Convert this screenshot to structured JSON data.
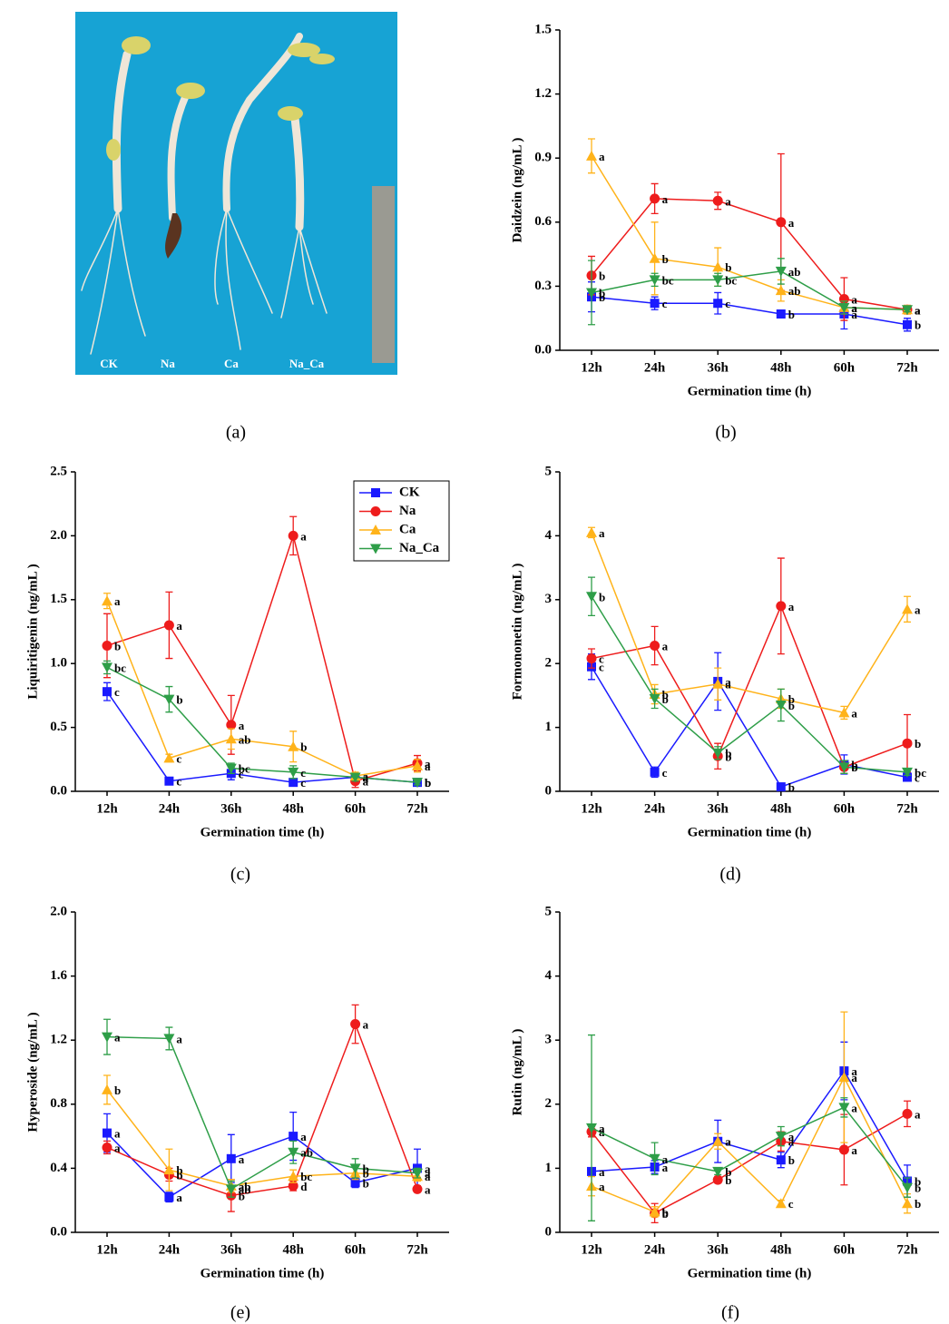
{
  "photo": {
    "labels": [
      "CK",
      "Na",
      "Ca",
      "Na_Ca"
    ]
  },
  "panel_labels": [
    "(a)",
    "(b)",
    "(c)",
    "(d)",
    "(e)",
    "(f)"
  ],
  "chart_data": [
    {
      "type": "line",
      "x_label": "Germination time (h)",
      "y_label": "Daidzein (ng/mL )",
      "categories": [
        "12h",
        "24h",
        "36h",
        "48h",
        "60h",
        "72h"
      ],
      "ylim": [
        0,
        1.5
      ],
      "yticks": [
        {
          "value": 0,
          "label": "0.0"
        },
        0.3,
        0.6,
        0.9,
        1.2,
        1.5
      ],
      "legend": false,
      "series": [
        {
          "color": "#1a1aff",
          "marker": "square",
          "values": [
            0.25,
            0.22,
            0.22,
            0.17,
            0.17,
            0.12
          ],
          "errors": [
            0.07,
            0.03,
            0.05,
            0.01,
            0.07,
            0.03
          ],
          "letters": [
            "b",
            "c",
            "c",
            "b",
            "a",
            "b"
          ]
        },
        {
          "color": "#ee1c1c",
          "marker": "circle",
          "values": [
            0.35,
            0.71,
            0.7,
            0.6,
            0.24,
            0.19
          ],
          "errors": [
            0.09,
            0.07,
            0.04,
            0.32,
            0.1,
            0.02
          ],
          "letters": [
            "b",
            "a",
            "a",
            "a",
            "a",
            "a"
          ]
        },
        {
          "color": "#ffb31a",
          "marker": "triangle-up",
          "values": [
            0.91,
            0.43,
            0.39,
            0.28,
            0.2,
            0.19
          ],
          "errors": [
            0.08,
            0.17,
            0.09,
            0.05,
            0.03,
            0.02
          ],
          "letters": [
            "a",
            "b",
            "b",
            "ab",
            "a",
            "a"
          ]
        },
        {
          "color": "#2e9e48",
          "marker": "triangle-down",
          "values": [
            0.27,
            0.33,
            0.33,
            0.37,
            0.2,
            0.19
          ],
          "errors": [
            0.15,
            0.03,
            0.03,
            0.06,
            0.03,
            0.01
          ],
          "letters": [
            "b",
            "bc",
            "bc",
            "ab",
            "a",
            "a"
          ]
        }
      ]
    },
    {
      "type": "line",
      "x_label": "Germination time (h)",
      "y_label": "Liquiritigenin (ng/mL )",
      "categories": [
        "12h",
        "24h",
        "36h",
        "48h",
        "60h",
        "72h"
      ],
      "ylim": [
        0,
        2.5
      ],
      "yticks": [
        {
          "value": 0,
          "label": "0.0"
        },
        0.5,
        {
          "value": 1,
          "label": "1.0"
        },
        1.5,
        {
          "value": 2,
          "label": "2.0"
        },
        2.5
      ],
      "legend": true,
      "series": [
        {
          "name": "CK",
          "color": "#1a1aff",
          "marker": "square",
          "values": [
            0.78,
            0.08,
            0.14,
            0.07,
            0.11,
            0.07
          ],
          "errors": [
            0.07,
            0.02,
            0.05,
            0.02,
            0.03,
            0.02
          ],
          "letters": [
            "c",
            "c",
            "c",
            "c",
            "a",
            "b"
          ]
        },
        {
          "name": "Na",
          "color": "#ee1c1c",
          "marker": "circle",
          "values": [
            1.14,
            1.3,
            0.52,
            2.0,
            0.08,
            0.22
          ],
          "errors": [
            0.25,
            0.26,
            0.23,
            0.15,
            0.05,
            0.06
          ],
          "letters": [
            "b",
            "a",
            "a",
            "a",
            "a",
            "a"
          ]
        },
        {
          "name": "Ca",
          "color": "#ffb31a",
          "marker": "triangle-up",
          "values": [
            1.49,
            0.26,
            0.41,
            0.35,
            0.12,
            0.2
          ],
          "errors": [
            0.06,
            0.03,
            0.08,
            0.12,
            0.03,
            0.05
          ],
          "letters": [
            "a",
            "c",
            "ab",
            "b",
            "a",
            "a"
          ]
        },
        {
          "name": "Na_Ca",
          "color": "#2e9e48",
          "marker": "triangle-down",
          "values": [
            0.97,
            0.72,
            0.18,
            0.15,
            0.11,
            0.07
          ],
          "errors": [
            0.05,
            0.1,
            0.04,
            0.05,
            0.03,
            0.02
          ],
          "letters": [
            "bc",
            "b",
            "bc",
            "c",
            "a",
            "b"
          ]
        }
      ]
    },
    {
      "type": "line",
      "x_label": "Germination time (h)",
      "y_label": "Formononetin (ng/mL )",
      "categories": [
        "12h",
        "24h",
        "36h",
        "48h",
        "60h",
        "72h"
      ],
      "ylim": [
        0,
        5
      ],
      "yticks": [
        0,
        1,
        2,
        3,
        4,
        5
      ],
      "legend": false,
      "series": [
        {
          "color": "#1a1aff",
          "marker": "square",
          "values": [
            1.95,
            0.3,
            1.72,
            0.07,
            0.42,
            0.22
          ],
          "errors": [
            0.2,
            0.08,
            0.45,
            0.02,
            0.15,
            0.05
          ],
          "letters": [
            "c",
            "c",
            "a",
            "b",
            "b",
            "c"
          ]
        },
        {
          "color": "#ee1c1c",
          "marker": "circle",
          "values": [
            2.08,
            2.28,
            0.55,
            2.9,
            0.38,
            0.75
          ],
          "errors": [
            0.15,
            0.3,
            0.2,
            0.75,
            0.1,
            0.45
          ],
          "letters": [
            "c",
            "a",
            "b",
            "a",
            "b",
            "b"
          ]
        },
        {
          "color": "#ffb31a",
          "marker": "triangle-up",
          "values": [
            4.05,
            1.52,
            1.68,
            1.45,
            1.23,
            2.85
          ],
          "errors": [
            0.08,
            0.15,
            0.25,
            0.15,
            0.1,
            0.2
          ],
          "letters": [
            "a",
            "b",
            "a",
            "b",
            "a",
            "a"
          ]
        },
        {
          "color": "#2e9e48",
          "marker": "triangle-down",
          "values": [
            3.05,
            1.45,
            0.6,
            1.35,
            0.38,
            0.3
          ],
          "errors": [
            0.3,
            0.15,
            0.1,
            0.25,
            0.1,
            0.05
          ],
          "letters": [
            "b",
            "b",
            "b",
            "b",
            "b",
            "bc"
          ]
        }
      ]
    },
    {
      "type": "line",
      "x_label": "Germination time (h)",
      "y_label": "Hyperoside (ng/mL )",
      "categories": [
        "12h",
        "24h",
        "36h",
        "48h",
        "60h",
        "72h"
      ],
      "ylim": [
        0,
        2
      ],
      "yticks": [
        {
          "value": 0,
          "label": "0.0"
        },
        0.4,
        0.8,
        1.2,
        1.6,
        {
          "value": 2,
          "label": "2.0"
        }
      ],
      "legend": false,
      "series": [
        {
          "color": "#1a1aff",
          "marker": "square",
          "values": [
            0.62,
            0.22,
            0.46,
            0.6,
            0.31,
            0.4
          ],
          "errors": [
            0.12,
            0.03,
            0.15,
            0.15,
            0.03,
            0.12
          ],
          "letters": [
            "a",
            "a",
            "a",
            "a",
            "b",
            "a"
          ]
        },
        {
          "color": "#ee1c1c",
          "marker": "circle",
          "values": [
            0.53,
            0.36,
            0.23,
            0.29,
            1.3,
            0.27
          ],
          "errors": [
            0.04,
            0.04,
            0.1,
            0.03,
            0.12,
            0.02
          ],
          "letters": [
            "a",
            "b",
            "b",
            "d",
            "a",
            "a"
          ]
        },
        {
          "color": "#ffb31a",
          "marker": "triangle-up",
          "values": [
            0.89,
            0.39,
            0.29,
            0.35,
            0.37,
            0.35
          ],
          "errors": [
            0.09,
            0.13,
            0.04,
            0.04,
            0.04,
            0.03
          ],
          "letters": [
            "b",
            "b",
            "ab",
            "bc",
            "b",
            "a"
          ]
        },
        {
          "color": "#2e9e48",
          "marker": "triangle-down",
          "values": [
            1.22,
            1.21,
            0.27,
            0.5,
            0.4,
            0.37
          ],
          "errors": [
            0.11,
            0.07,
            0.05,
            0.07,
            0.06,
            0.03
          ],
          "letters": [
            "a",
            "a",
            "ab",
            "ab",
            "b",
            "a"
          ]
        }
      ]
    },
    {
      "type": "line",
      "x_label": "Germination time (h)",
      "y_label": "Rutin (ng/mL )",
      "categories": [
        "12h",
        "24h",
        "36h",
        "48h",
        "60h",
        "72h"
      ],
      "ylim": [
        0,
        5
      ],
      "yticks": [
        0,
        1,
        2,
        3,
        4,
        5
      ],
      "legend": false,
      "series": [
        {
          "color": "#1a1aff",
          "marker": "square",
          "values": [
            0.95,
            1.02,
            1.42,
            1.13,
            2.52,
            0.8
          ],
          "errors": [
            0.05,
            0.1,
            0.33,
            0.12,
            0.45,
            0.25
          ],
          "letters": [
            "a",
            "a",
            "a",
            "b",
            "a",
            "b"
          ]
        },
        {
          "color": "#ee1c1c",
          "marker": "circle",
          "values": [
            1.57,
            0.3,
            0.82,
            1.42,
            1.29,
            1.85
          ],
          "errors": [
            0.08,
            0.15,
            0.05,
            0.15,
            0.55,
            0.2
          ],
          "letters": [
            "a",
            "b",
            "b",
            "a",
            "a",
            "a"
          ]
        },
        {
          "color": "#ffb31a",
          "marker": "triangle-up",
          "values": [
            0.72,
            0.32,
            1.42,
            0.45,
            2.42,
            0.45
          ],
          "errors": [
            0.15,
            0.08,
            0.12,
            0.05,
            1.02,
            0.15
          ],
          "letters": [
            "a",
            "b",
            "a",
            "c",
            "a",
            "b"
          ]
        },
        {
          "color": "#2e9e48",
          "marker": "triangle-down",
          "values": [
            1.63,
            1.15,
            0.95,
            1.5,
            1.95,
            0.7
          ],
          "errors": [
            1.45,
            0.25,
            0.05,
            0.15,
            0.15,
            0.15
          ],
          "letters": [
            "a",
            "a",
            "b",
            "a",
            "a",
            "b"
          ]
        }
      ]
    }
  ]
}
